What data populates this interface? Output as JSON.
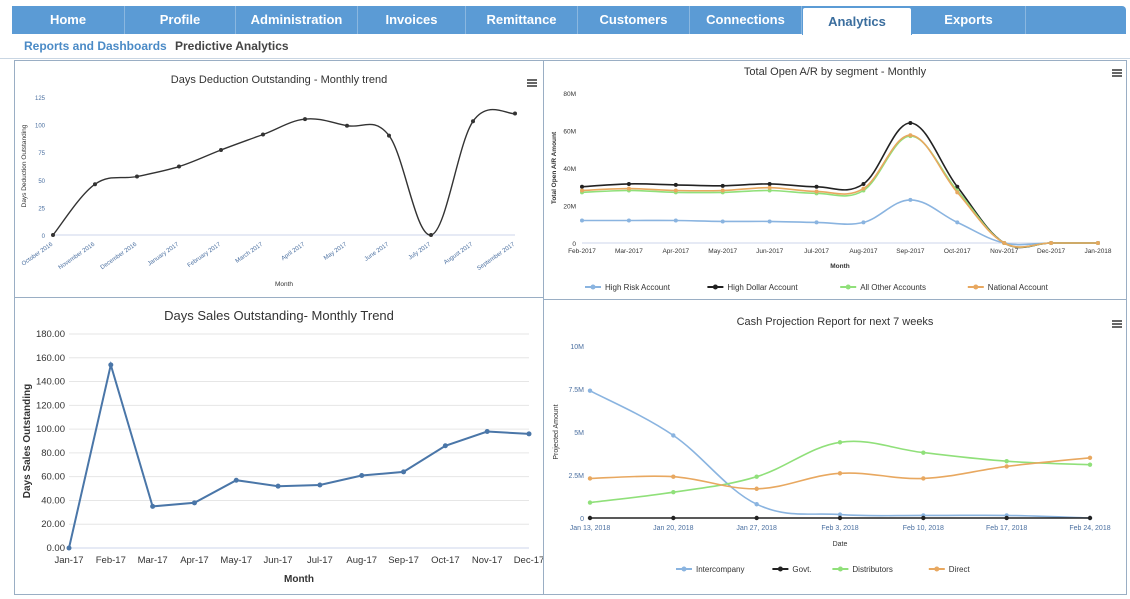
{
  "nav": {
    "tabs": [
      {
        "label": "Home"
      },
      {
        "label": "Profile"
      },
      {
        "label": "Administration"
      },
      {
        "label": "Invoices"
      },
      {
        "label": "Remittance"
      },
      {
        "label": "Customers"
      },
      {
        "label": "Connections"
      },
      {
        "label": "Analytics"
      },
      {
        "label": "Exports"
      }
    ],
    "active_tab": "Analytics"
  },
  "subnav": {
    "items": [
      {
        "label": "Reports and Dashboards"
      },
      {
        "label": "Predictive Analytics"
      }
    ],
    "selected": "Reports and Dashboards"
  },
  "colors": {
    "tab_bar": "#5b9bd5",
    "line_dark": "#333333",
    "line_blue": "#4a76a8",
    "high_risk": "#8ab4e0",
    "high_dollar": "#222222",
    "all_other": "#90e07a",
    "national": "#e8a860"
  },
  "chart_data": [
    {
      "type": "line",
      "title": "Days Deduction Outstanding - Monthly trend",
      "xlabel": "Month",
      "ylabel": "Days Deduction Outstanding",
      "categories": [
        "October 2016",
        "November 2016",
        "December 2016",
        "January 2017",
        "February 2017",
        "March 2017",
        "April 2017",
        "May 2017",
        "June 2017",
        "July 2017",
        "August 2017",
        "September 2017"
      ],
      "series": [
        {
          "values": [
            0,
            46,
            53,
            62,
            77,
            91,
            105,
            99,
            90,
            0,
            103,
            110
          ]
        }
      ],
      "ylim": [
        0,
        125
      ],
      "yticks": [
        "0",
        "25",
        "50",
        "75",
        "100",
        "125"
      ],
      "smooth": true
    },
    {
      "type": "line",
      "title": "Total Open A/R by segment - Monthly",
      "xlabel": "Month",
      "ylabel": "Total Open A/R Amount",
      "categories": [
        "Feb-2017",
        "Mar-2017",
        "Apr-2017",
        "May-2017",
        "Jun-2017",
        "Jul-2017",
        "Aug-2017",
        "Sep-2017",
        "Oct-2017",
        "Nov-2017",
        "Dec-2017",
        "Jan-2018"
      ],
      "series": [
        {
          "name": "High Risk Account",
          "values": [
            12,
            12,
            12,
            11.5,
            11.5,
            11,
            11,
            23,
            11,
            0,
            0,
            0
          ]
        },
        {
          "name": "High Dollar Account",
          "values": [
            30,
            31.5,
            31,
            30.5,
            31.5,
            30,
            31.5,
            64,
            30,
            0,
            0,
            0
          ]
        },
        {
          "name": "All Other Accounts",
          "values": [
            27,
            28,
            27,
            27,
            28,
            26.5,
            28,
            57,
            28,
            0,
            0,
            0
          ]
        },
        {
          "name": "National Account",
          "values": [
            28,
            29,
            28,
            28,
            29.5,
            27.5,
            29,
            57.5,
            27,
            0,
            0,
            0
          ]
        }
      ],
      "ylim": [
        0,
        80
      ],
      "yticks": [
        "0",
        "20M",
        "40M",
        "60M",
        "80M"
      ],
      "legend": "bottom",
      "smooth": true
    },
    {
      "type": "line",
      "title": "Days Sales Outstanding- Monthly Trend",
      "xlabel": "Month",
      "ylabel": "Days Sales Outstanding",
      "categories": [
        "Jan-17",
        "Feb-17",
        "Mar-17",
        "Apr-17",
        "May-17",
        "Jun-17",
        "Jul-17",
        "Aug-17",
        "Sep-17",
        "Oct-17",
        "Nov-17",
        "Dec-17"
      ],
      "series": [
        {
          "values": [
            0,
            154,
            35,
            38,
            57,
            52,
            53,
            61,
            64,
            86,
            98,
            96
          ]
        }
      ],
      "ylim": [
        0,
        180
      ],
      "yticks": [
        "0.00",
        "20.00",
        "40.00",
        "60.00",
        "80.00",
        "100.00",
        "120.00",
        "140.00",
        "160.00",
        "180.00"
      ],
      "grid": true,
      "smooth": false
    },
    {
      "type": "line",
      "title": "Cash Projection Report for next 7 weeks",
      "xlabel": "Date",
      "ylabel": "Projected Amount",
      "categories": [
        "Jan 13, 2018",
        "Jan 20, 2018",
        "Jan 27, 2018",
        "Feb 3, 2018",
        "Feb 10, 2018",
        "Feb 17, 2018",
        "Feb 24, 2018"
      ],
      "series": [
        {
          "name": "Intercompany",
          "values": [
            7.4,
            4.8,
            0.8,
            0.2,
            0.15,
            0.15,
            0
          ]
        },
        {
          "name": "Govt.",
          "values": [
            0,
            0,
            0,
            0,
            0,
            0,
            0
          ]
        },
        {
          "name": "Distributors",
          "values": [
            0.9,
            1.5,
            2.4,
            4.4,
            3.8,
            3.3,
            3.1
          ]
        },
        {
          "name": "Direct",
          "values": [
            2.3,
            2.4,
            1.7,
            2.6,
            2.3,
            3.0,
            3.5
          ]
        }
      ],
      "ylim": [
        0,
        10
      ],
      "yticks": [
        "0",
        "2.5M",
        "5M",
        "7.5M",
        "10M"
      ],
      "legend": "bottom",
      "smooth": true
    }
  ]
}
